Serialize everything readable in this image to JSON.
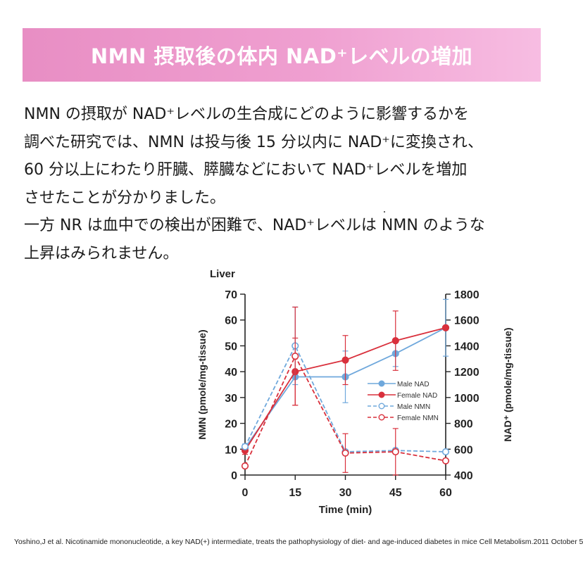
{
  "banner": {
    "title": "NMN 摂取後の体内 NAD⁺レベルの増加"
  },
  "body": {
    "lines": [
      "NMN の摂取が NAD⁺レベルの生合成にどのように影響するかを",
      "調べた研究では、NMN は投与後 15 分以内に NAD⁺に変換され、",
      "60 分以上にわたり肝臓、膵臓などにおいて NAD⁺レベルを増加",
      "させたことが分かりました。",
      "一方 NR は血中での検出が困難で、NAD⁺レベルは NMN のような",
      "上昇はみられません。"
    ]
  },
  "chart_data": {
    "type": "line",
    "title": "Liver",
    "xlabel": "Time (min)",
    "ylabel_left": "NMN (pmole/mg-tissue)",
    "ylabel_right": "NAD⁺ (pmole/mg-tissue)",
    "x": [
      0,
      15,
      30,
      45,
      60
    ],
    "xlim": [
      0,
      60
    ],
    "ylim_left": [
      0,
      70
    ],
    "ylim_right": [
      400,
      1800
    ],
    "y_ticks_left": [
      0,
      10,
      20,
      30,
      40,
      50,
      60,
      70
    ],
    "y_ticks_right": [
      400,
      600,
      800,
      1000,
      1200,
      1400,
      1600,
      1800
    ],
    "legend_position": "center-right",
    "series": [
      {
        "name": "Male NAD",
        "axis": "right",
        "color": "#6fa8dc",
        "dashed": false,
        "filled": true,
        "values": [
          610,
          1160,
          1160,
          1340,
          1540
        ],
        "err": [
          30,
          0,
          200,
          100,
          220
        ]
      },
      {
        "name": "Female NAD",
        "axis": "right",
        "color": "#d9303c",
        "dashed": false,
        "filled": true,
        "values": [
          590,
          1200,
          1290,
          1440,
          1540
        ],
        "err": [
          30,
          260,
          190,
          230,
          0
        ]
      },
      {
        "name": "Male NMN",
        "axis": "left",
        "color": "#6fa8dc",
        "dashed": true,
        "filled": false,
        "values": [
          11,
          50,
          9,
          9.5,
          9
        ],
        "err": [
          0,
          15,
          0,
          0,
          0
        ]
      },
      {
        "name": "Female NMN",
        "axis": "left",
        "color": "#d9303c",
        "dashed": true,
        "filled": false,
        "values": [
          3.5,
          46,
          8.5,
          9,
          5.5
        ],
        "err": [
          0,
          19,
          7.5,
          9,
          0
        ]
      }
    ]
  },
  "citation": "Yoshino,J et al. Nicotinamide mononucleotide, a key NAD(+) intermediate, treats the pathophysiology of diet- and age-induced diabetes in mice Cell Metabolism.2011 October 5"
}
